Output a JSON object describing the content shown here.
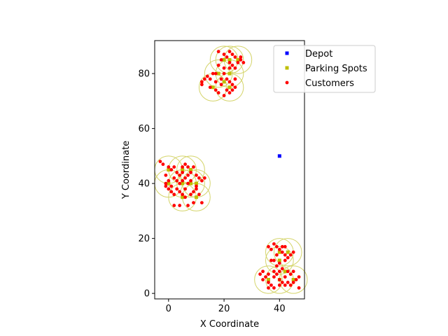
{
  "chart_data": {
    "type": "scatter",
    "xlabel": "X Coordinate",
    "ylabel": "Y Coordinate",
    "xlim": [
      -5,
      49
    ],
    "ylim": [
      -2,
      92
    ],
    "xticks": [
      0,
      20,
      40
    ],
    "yticks": [
      0,
      20,
      40,
      60,
      80
    ],
    "grid": false,
    "legend_position": "top-right",
    "colors": {
      "depot": "#0000ff",
      "parking": "#bfbf00",
      "customers": "#ff0000",
      "circle": "#d4d46a"
    },
    "series": [
      {
        "name": "Depot",
        "marker": "square",
        "points": [
          [
            40,
            50
          ]
        ]
      },
      {
        "name": "Parking Spots",
        "marker": "square",
        "points": [
          [
            0,
            45
          ],
          [
            5,
            45
          ],
          [
            8,
            45
          ],
          [
            0,
            40
          ],
          [
            5,
            40
          ],
          [
            8,
            40
          ],
          [
            10,
            40
          ],
          [
            5,
            35
          ],
          [
            10,
            35
          ],
          [
            22,
            85
          ],
          [
            20,
            85
          ],
          [
            25,
            85
          ],
          [
            18,
            80
          ],
          [
            22,
            80
          ],
          [
            16,
            75
          ],
          [
            22,
            75
          ],
          [
            20,
            77
          ],
          [
            40,
            15
          ],
          [
            43,
            15
          ],
          [
            40,
            12
          ],
          [
            40,
            5
          ],
          [
            36,
            5
          ],
          [
            45,
            5
          ],
          [
            42,
            8
          ]
        ]
      },
      {
        "name": "Customers",
        "marker": "circle",
        "points": [
          [
            -3,
            48
          ],
          [
            -2,
            47
          ],
          [
            0,
            46
          ],
          [
            1,
            45
          ],
          [
            3,
            44
          ],
          [
            4,
            43
          ],
          [
            2,
            42
          ],
          [
            0,
            41
          ],
          [
            -1,
            40
          ],
          [
            -1,
            39
          ],
          [
            0,
            38
          ],
          [
            1,
            37
          ],
          [
            2,
            36
          ],
          [
            3,
            38
          ],
          [
            4,
            40
          ],
          [
            5,
            41
          ],
          [
            6,
            42
          ],
          [
            7,
            43
          ],
          [
            8,
            44
          ],
          [
            6,
            47
          ],
          [
            5,
            46
          ],
          [
            7,
            46
          ],
          [
            9,
            46
          ],
          [
            10,
            43
          ],
          [
            11,
            42
          ],
          [
            12,
            41
          ],
          [
            10,
            39
          ],
          [
            11,
            36
          ],
          [
            12,
            33
          ],
          [
            9,
            33
          ],
          [
            7,
            32
          ],
          [
            4,
            32
          ],
          [
            2,
            32
          ],
          [
            8,
            36
          ],
          [
            9,
            37
          ],
          [
            6,
            38
          ],
          [
            5,
            36
          ],
          [
            4,
            37
          ],
          [
            7,
            40
          ],
          [
            3,
            41
          ],
          [
            -1,
            43
          ],
          [
            1,
            39
          ],
          [
            6,
            35
          ],
          [
            10,
            38
          ],
          [
            13,
            42
          ],
          [
            8,
            41
          ],
          [
            5,
            44
          ],
          [
            2,
            46
          ],
          [
            18,
            88
          ],
          [
            20,
            87
          ],
          [
            22,
            88
          ],
          [
            23,
            87
          ],
          [
            24,
            86
          ],
          [
            21,
            86
          ],
          [
            19,
            85
          ],
          [
            22,
            84
          ],
          [
            23,
            83
          ],
          [
            25,
            84
          ],
          [
            26,
            85
          ],
          [
            27,
            84
          ],
          [
            22,
            82
          ],
          [
            20,
            82
          ],
          [
            18,
            83
          ],
          [
            16,
            80
          ],
          [
            14,
            79
          ],
          [
            13,
            78
          ],
          [
            15,
            78
          ],
          [
            17,
            77
          ],
          [
            19,
            78
          ],
          [
            21,
            78
          ],
          [
            22,
            77
          ],
          [
            23,
            76
          ],
          [
            24,
            75
          ],
          [
            23,
            74
          ],
          [
            22,
            73
          ],
          [
            20,
            72
          ],
          [
            18,
            73
          ],
          [
            17,
            74
          ],
          [
            15,
            75
          ],
          [
            12,
            77
          ],
          [
            12,
            76
          ],
          [
            20,
            80
          ],
          [
            24,
            82
          ],
          [
            19,
            76
          ],
          [
            21,
            74
          ],
          [
            17,
            80
          ],
          [
            24,
            78
          ],
          [
            26,
            86
          ],
          [
            36,
            17
          ],
          [
            37,
            16
          ],
          [
            38,
            18
          ],
          [
            39,
            17
          ],
          [
            40,
            16
          ],
          [
            41,
            15
          ],
          [
            42,
            14
          ],
          [
            43,
            13
          ],
          [
            44,
            14
          ],
          [
            45,
            15
          ],
          [
            42,
            12
          ],
          [
            40,
            11
          ],
          [
            38,
            12
          ],
          [
            39,
            10
          ],
          [
            41,
            9
          ],
          [
            40,
            8
          ],
          [
            39,
            7
          ],
          [
            38,
            8
          ],
          [
            36,
            7
          ],
          [
            34,
            8
          ],
          [
            33,
            7
          ],
          [
            35,
            6
          ],
          [
            34,
            5
          ],
          [
            36,
            4
          ],
          [
            37,
            3
          ],
          [
            38,
            2
          ],
          [
            36,
            2
          ],
          [
            40,
            3
          ],
          [
            41,
            4
          ],
          [
            42,
            3
          ],
          [
            43,
            4
          ],
          [
            44,
            3
          ],
          [
            45,
            4
          ],
          [
            46,
            5
          ],
          [
            47,
            6
          ],
          [
            47,
            2
          ],
          [
            42,
            6
          ],
          [
            40,
            5
          ],
          [
            38,
            6
          ],
          [
            44,
            7
          ],
          [
            45,
            8
          ],
          [
            43,
            8
          ],
          [
            39,
            14
          ],
          [
            37,
            12
          ],
          [
            41,
            17
          ],
          [
            42,
            17
          ]
        ]
      },
      {
        "name": "",
        "marker": "circle-outline",
        "radius": 5,
        "points": [
          [
            0,
            45
          ],
          [
            5,
            45
          ],
          [
            8,
            45
          ],
          [
            0,
            40
          ],
          [
            5,
            40
          ],
          [
            8,
            40
          ],
          [
            10,
            40
          ],
          [
            5,
            35
          ],
          [
            10,
            35
          ],
          [
            22,
            85
          ],
          [
            20,
            85
          ],
          [
            25,
            85
          ],
          [
            18,
            80
          ],
          [
            22,
            80
          ],
          [
            16,
            75
          ],
          [
            22,
            75
          ],
          [
            40,
            15
          ],
          [
            43,
            15
          ],
          [
            40,
            12
          ],
          [
            40,
            5
          ],
          [
            36,
            5
          ],
          [
            45,
            5
          ]
        ]
      }
    ],
    "legend": [
      {
        "label": "Depot",
        "series": "Depot"
      },
      {
        "label": "Parking Spots",
        "series": "Parking Spots"
      },
      {
        "label": "Customers",
        "series": "Customers"
      }
    ]
  }
}
